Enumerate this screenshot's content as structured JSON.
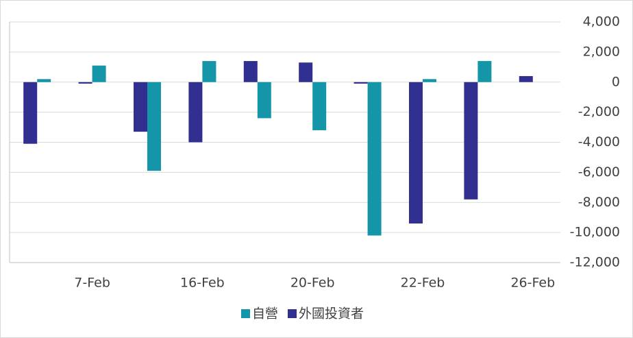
{
  "chart_data": {
    "type": "bar",
    "categories": [
      null,
      "7-Feb",
      null,
      "16-Feb",
      null,
      "20-Feb",
      null,
      "22-Feb",
      null,
      "26-Feb"
    ],
    "series": [
      {
        "name": "自營",
        "color": "#1496a8",
        "values": [
          200,
          1100,
          -5900,
          1400,
          -2400,
          -3200,
          -10200,
          200,
          1400,
          0
        ]
      },
      {
        "name": "外國投資者",
        "color": "#312f8f",
        "values": [
          -4100,
          -100,
          -3300,
          -4000,
          1400,
          1300,
          -100,
          -9400,
          -7800,
          400
        ]
      }
    ],
    "ylim": [
      -12000,
      4000
    ],
    "yticks": [
      {
        "value": 4000,
        "label": "4,000"
      },
      {
        "value": 2000,
        "label": "2,000"
      },
      0,
      {
        "value": -2000,
        "label": "-2,000"
      },
      {
        "value": -4000,
        "label": "-4,000"
      },
      {
        "value": -6000,
        "label": "-6,000"
      },
      {
        "value": -8000,
        "label": "-8,000"
      },
      {
        "value": -10000,
        "label": "-10,000"
      },
      {
        "value": -12000,
        "label": "-12,000"
      }
    ],
    "grid": true,
    "legend": "bottom"
  }
}
